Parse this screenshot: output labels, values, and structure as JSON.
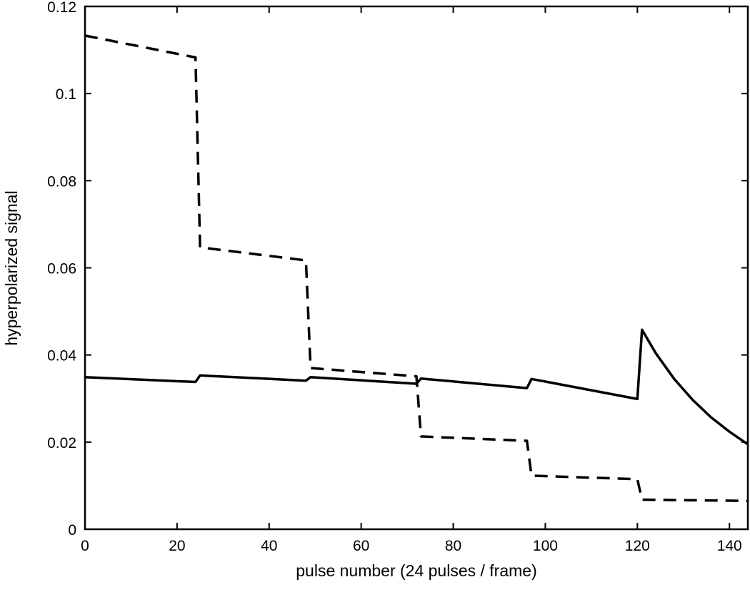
{
  "chart_data": {
    "type": "line",
    "title": "",
    "xlabel": "pulse number (24 pulses / frame)",
    "ylabel": "hyperpolarized signal",
    "xlim": [
      0,
      144
    ],
    "ylim": [
      0,
      0.12
    ],
    "xticks": [
      0,
      20,
      40,
      60,
      80,
      100,
      120,
      140
    ],
    "xtick_labels": [
      "0",
      "20",
      "40",
      "60",
      "80",
      "100",
      "120",
      "140"
    ],
    "yticks": [
      0,
      0.02,
      0.04,
      0.06,
      0.08,
      0.1,
      0.12
    ],
    "ytick_labels": [
      "0",
      "0.02",
      "0.04",
      "0.06",
      "0.08",
      "0.1",
      "0.12"
    ],
    "grid": false,
    "legend": "none",
    "series": [
      {
        "style": "dashed",
        "color": "#000000",
        "x": [
          0,
          24,
          25,
          48,
          49,
          72,
          73,
          96,
          97,
          120,
          121,
          144
        ],
        "y": [
          0.1133,
          0.1083,
          0.0647,
          0.0617,
          0.037,
          0.0351,
          0.0213,
          0.0203,
          0.0123,
          0.0115,
          0.0068,
          0.0065
        ]
      },
      {
        "style": "solid",
        "color": "#000000",
        "x": [
          0,
          24,
          25,
          48,
          49,
          72,
          73,
          96,
          97,
          120,
          121,
          124,
          128,
          132,
          136,
          140,
          144
        ],
        "y": [
          0.0349,
          0.0338,
          0.0353,
          0.0341,
          0.0349,
          0.0334,
          0.0346,
          0.0324,
          0.0345,
          0.0299,
          0.0458,
          0.0404,
          0.0345,
          0.0297,
          0.0257,
          0.0224,
          0.0195
        ]
      }
    ]
  }
}
